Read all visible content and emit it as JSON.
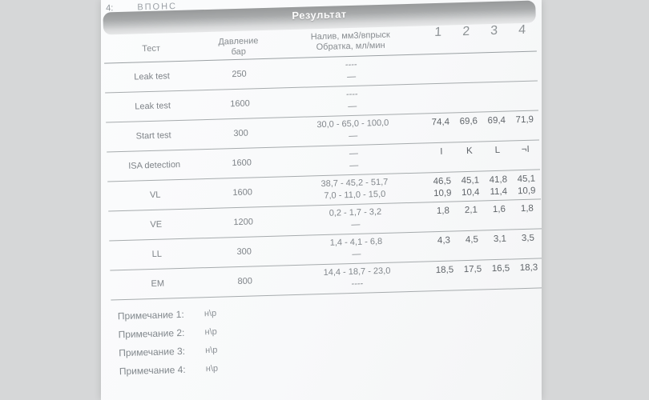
{
  "document": {
    "top_fragment_number": "4:",
    "top_fragment_text": "ВПОНС",
    "result_bar_title": "Результат",
    "table": {
      "col_test": "Тест",
      "col_pressure_line1": "Давление",
      "col_pressure_line2": "бар",
      "col_spec_line1": "Налив, мм3/впрыск",
      "col_spec_line2": "Обратка, мл/мин",
      "injector_numbers": [
        "1",
        "2",
        "3",
        "4"
      ],
      "rows": [
        {
          "test": "Leak test",
          "pressure": "250",
          "spec": [
            "----",
            "—"
          ],
          "values": [
            [],
            []
          ]
        },
        {
          "test": "Leak test",
          "pressure": "1600",
          "spec": [
            "----",
            "—"
          ],
          "values": [
            [],
            []
          ]
        },
        {
          "test": "Start test",
          "pressure": "300",
          "spec": [
            "30,0 - 65,0 - 100,0",
            "—"
          ],
          "values": [
            [
              "74,4",
              "69,6",
              "69,4",
              "71,9"
            ],
            []
          ]
        },
        {
          "test": "ISA detection",
          "pressure": "1600",
          "spec": [
            "—",
            "—"
          ],
          "values": [
            [
              "I",
              "K",
              "L",
              "¬I"
            ],
            []
          ]
        },
        {
          "test": "VL",
          "pressure": "1600",
          "spec": [
            "38,7 - 45,2 - 51,7",
            "7,0 - 11,0 - 15,0"
          ],
          "values": [
            [
              "46,5",
              "45,1",
              "41,8",
              "45,1"
            ],
            [
              "10,9",
              "10,4",
              "11,4",
              "10,9"
            ]
          ]
        },
        {
          "test": "VE",
          "pressure": "1200",
          "spec": [
            "0,2 - 1,7 - 3,2",
            "—"
          ],
          "values": [
            [
              "1,8",
              "2,1",
              "1,6",
              "1,8"
            ],
            []
          ]
        },
        {
          "test": "LL",
          "pressure": "300",
          "spec": [
            "1,4 - 4,1 - 6,8",
            "—"
          ],
          "values": [
            [
              "4,3",
              "4,5",
              "3,1",
              "3,5"
            ],
            []
          ]
        },
        {
          "test": "EM",
          "pressure": "800",
          "spec": [
            "14,4 - 18,7 - 23,0",
            "----"
          ],
          "values": [
            [
              "18,5",
              "17,5",
              "16,5",
              "18,3"
            ],
            []
          ]
        }
      ]
    },
    "notes": [
      {
        "label": "Примечание 1:",
        "value": "н\\р"
      },
      {
        "label": "Примечание 2:",
        "value": "н\\р"
      },
      {
        "label": "Примечание 3:",
        "value": "н\\р"
      },
      {
        "label": "Примечание 4:",
        "value": "н\\р"
      }
    ]
  },
  "colors": {
    "background": "#d6d7d8",
    "page": "#fbfcfd",
    "bar_top": "#97999a",
    "bar_bottom": "#e7e8e9",
    "text_gray": "#7e8388",
    "line_gray": "#a6abad"
  }
}
